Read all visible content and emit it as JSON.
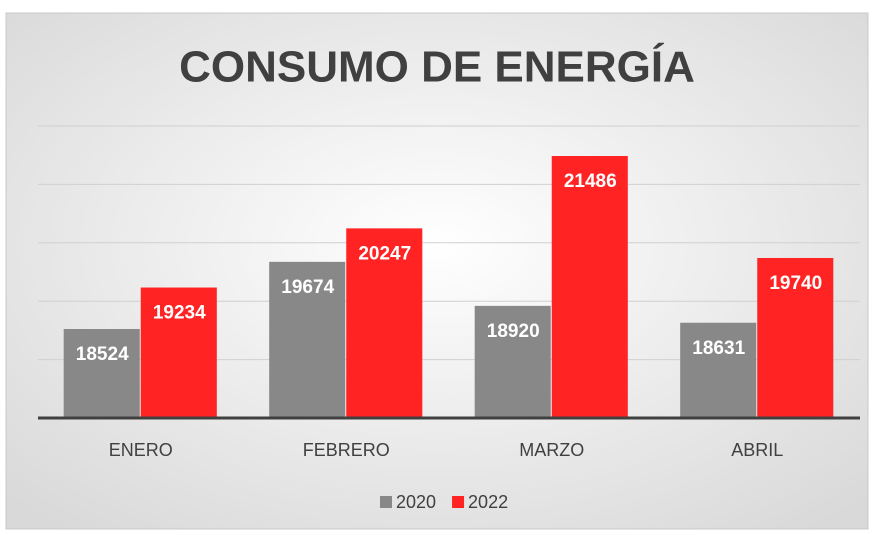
{
  "chart_data": {
    "type": "bar",
    "title": "CONSUMO DE ENERGÍA",
    "categories": [
      "ENERO",
      "FEBRERO",
      "MARZO",
      "ABRIL"
    ],
    "series": [
      {
        "name": "2020",
        "color": "#888888",
        "values": [
          18524,
          19674,
          18920,
          18631
        ]
      },
      {
        "name": "2022",
        "color": "#ff2323",
        "values": [
          19234,
          20247,
          21486,
          19740
        ]
      }
    ],
    "ylim": [
      17000,
      22000
    ],
    "yticks": [
      18000,
      19000,
      20000,
      21000,
      22000
    ],
    "grid": true,
    "legend": "bottom"
  }
}
